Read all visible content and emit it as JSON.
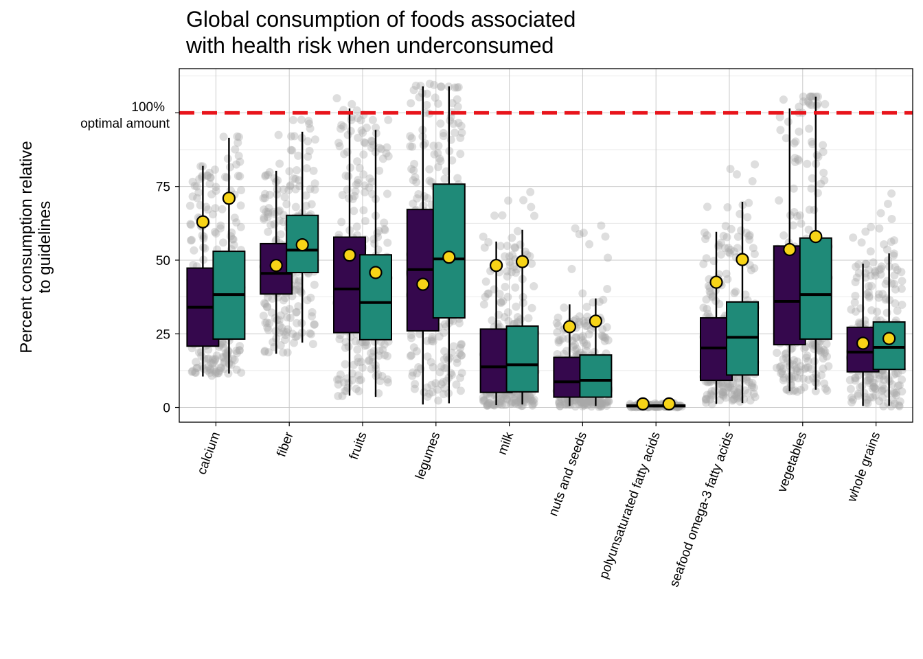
{
  "chart_data": {
    "type": "box",
    "title_lines": [
      "Global consumption of foods associated",
      "with health risk when underconsumed"
    ],
    "ylabel_lines": [
      "Percent consumption relative",
      "to guidelines"
    ],
    "xlabel": "",
    "ylim": [
      -5,
      115
    ],
    "yticks": [
      0,
      25,
      50,
      75
    ],
    "grid": true,
    "reference_line": {
      "y": 100,
      "color": "#e8141b",
      "labels": [
        "100%",
        "optimal amount"
      ]
    },
    "series": [
      {
        "color": "#35084d"
      },
      {
        "color": "#1f8a78"
      }
    ],
    "mean_marker_color": "#f7d417",
    "jitter_color": "#a9a9a9",
    "categories": [
      {
        "name": "calcium",
        "boxes": [
          {
            "min": 10.5,
            "q1": 20.8,
            "median": 34,
            "q3": 47.3,
            "max": 82,
            "mean": 63,
            "range": [
              10.5,
              77
            ]
          },
          {
            "min": 11.5,
            "q1": 23.2,
            "median": 38.3,
            "q3": 53,
            "max": 91.5,
            "mean": 71,
            "range": [
              11.5,
              92
            ]
          }
        ]
      },
      {
        "name": "fiber",
        "boxes": [
          {
            "min": 18.2,
            "q1": 38.5,
            "median": 45.5,
            "q3": 55.6,
            "max": 80.3,
            "mean": 48.2,
            "range": [
              18,
              93
            ]
          },
          {
            "min": 22,
            "q1": 45.8,
            "median": 53.4,
            "q3": 65.2,
            "max": 93.6,
            "mean": 55.2,
            "range": [
              21.5,
              100
            ]
          }
        ]
      },
      {
        "name": "fruits",
        "boxes": [
          {
            "min": 4,
            "q1": 25.4,
            "median": 40.2,
            "q3": 57.8,
            "max": 101.5,
            "mean": 51.7,
            "range": [
              3.8,
              108
            ]
          },
          {
            "min": 3.6,
            "q1": 23,
            "median": 35.6,
            "q3": 51.8,
            "max": 94.2,
            "mean": 45.8,
            "range": [
              3.5,
              101
            ]
          }
        ]
      },
      {
        "name": "legumes",
        "boxes": [
          {
            "min": 1,
            "q1": 26,
            "median": 46.8,
            "q3": 67.2,
            "max": 109,
            "mean": 41.8,
            "range": [
              1,
              110
            ]
          },
          {
            "min": 1.4,
            "q1": 30.4,
            "median": 50.4,
            "q3": 75.8,
            "max": 109,
            "mean": 51,
            "range": [
              1,
              108.5
            ]
          }
        ]
      },
      {
        "name": "milk",
        "boxes": [
          {
            "min": 0.8,
            "q1": 5.1,
            "median": 13.8,
            "q3": 26.6,
            "max": 56.3,
            "mean": 48.2,
            "range": [
              0.5,
              73
            ]
          },
          {
            "min": 1,
            "q1": 5.3,
            "median": 14.5,
            "q3": 27.6,
            "max": 60.3,
            "mean": 49.5,
            "range": [
              0.5,
              74
            ]
          }
        ]
      },
      {
        "name": "nuts and seeds",
        "boxes": [
          {
            "min": 0.5,
            "q1": 3.5,
            "median": 8.7,
            "q3": 17,
            "max": 35,
            "mean": 27.4,
            "range": [
              0.2,
              62
            ]
          },
          {
            "min": 0.5,
            "q1": 3.5,
            "median": 9.2,
            "q3": 17.8,
            "max": 37,
            "mean": 29.3,
            "range": [
              0.2,
              64.5
            ]
          }
        ]
      },
      {
        "name": "polyunsaturated fatty acids",
        "boxes": [
          {
            "min": 0.2,
            "q1": 0.3,
            "median": 0.5,
            "q3": 0.8,
            "max": 1.2,
            "mean": 1.2,
            "range": [
              0,
              1.5
            ]
          },
          {
            "min": 0.2,
            "q1": 0.3,
            "median": 0.5,
            "q3": 0.8,
            "max": 1.2,
            "mean": 1.2,
            "range": [
              0,
              1.5
            ]
          }
        ]
      },
      {
        "name": "seafood omega-3 fatty acids",
        "boxes": [
          {
            "min": 1.2,
            "q1": 9.2,
            "median": 20.2,
            "q3": 30.4,
            "max": 59.6,
            "mean": 42.5,
            "range": [
              1,
              74
            ]
          },
          {
            "min": 1.5,
            "q1": 11,
            "median": 23.8,
            "q3": 35.8,
            "max": 69.8,
            "mean": 50.2,
            "range": [
              1.5,
              87.5
            ]
          }
        ]
      },
      {
        "name": "vegetables",
        "boxes": [
          {
            "min": 5.5,
            "q1": 21.3,
            "median": 36,
            "q3": 54.8,
            "max": 101.5,
            "mean": 53.6,
            "range": [
              5,
              107.5
            ]
          },
          {
            "min": 6,
            "q1": 23.2,
            "median": 38.3,
            "q3": 57.5,
            "max": 105.5,
            "mean": 58,
            "range": [
              5.5,
              105.5
            ]
          }
        ]
      },
      {
        "name": "whole grains",
        "boxes": [
          {
            "min": 0.5,
            "q1": 12.1,
            "median": 18.8,
            "q3": 27.2,
            "max": 48.8,
            "mean": 21.8,
            "range": [
              0.3,
              64
            ]
          },
          {
            "min": 0.6,
            "q1": 12.9,
            "median": 20.4,
            "q3": 29,
            "max": 52.3,
            "mean": 23.4,
            "range": [
              0.3,
              73
            ]
          }
        ]
      }
    ]
  }
}
